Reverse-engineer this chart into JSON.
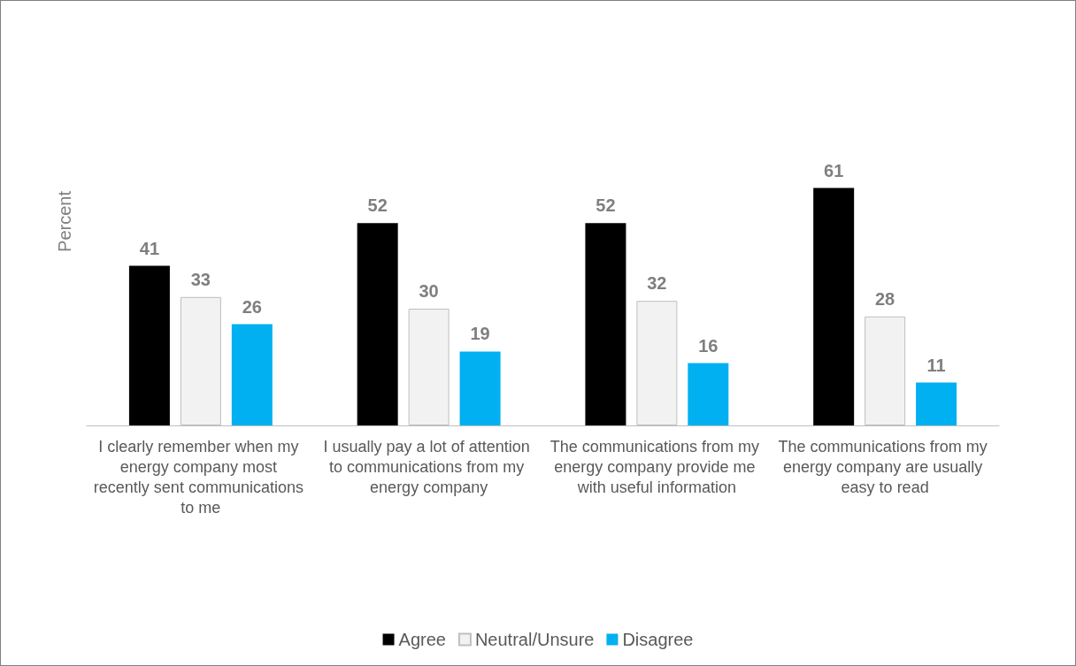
{
  "chart_data": {
    "type": "bar",
    "ylabel": "Percent",
    "categories": [
      "I clearly remember when my energy company most recently sent communications to me",
      "I usually pay a lot of attention to communications from my energy company",
      "The communications from my energy company provide me with useful information",
      "The communications from my energy company are usually easy to read"
    ],
    "series": [
      {
        "name": "Agree",
        "color": "#000000",
        "values": [
          41,
          52,
          52,
          61
        ]
      },
      {
        "name": "Neutral/Unsure",
        "color": "#f2f2f2",
        "values": [
          33,
          30,
          32,
          28
        ]
      },
      {
        "name": "Disagree",
        "color": "#00b0f0",
        "values": [
          26,
          19,
          16,
          11
        ]
      }
    ],
    "data_labels": true,
    "legend": "bottom",
    "grid": false
  }
}
